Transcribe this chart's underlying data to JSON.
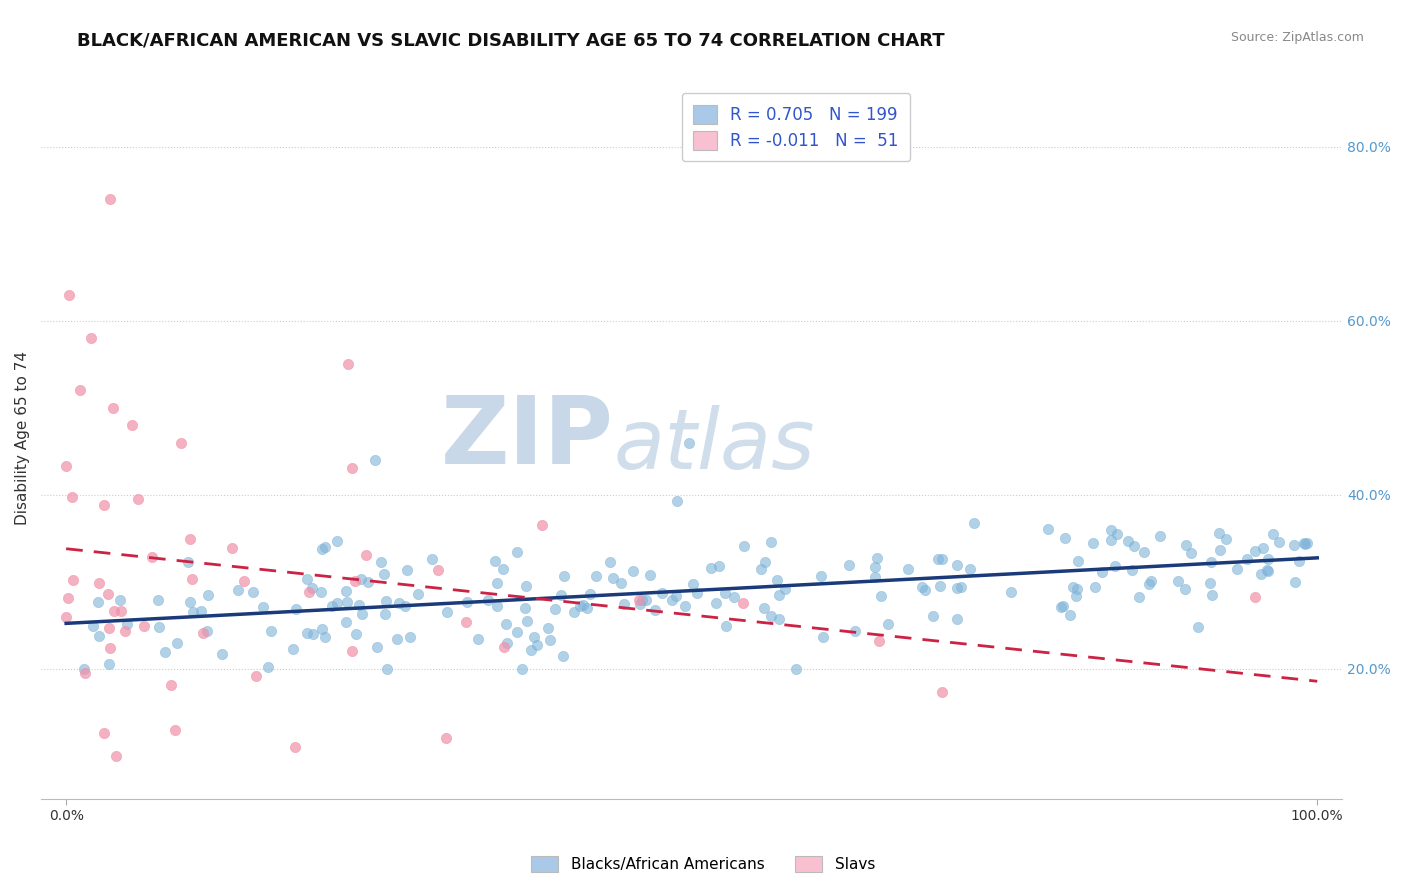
{
  "title": "BLACK/AFRICAN AMERICAN VS SLAVIC DISABILITY AGE 65 TO 74 CORRELATION CHART",
  "source_text": "Source: ZipAtlas.com",
  "ylabel": "Disability Age 65 to 74",
  "xlim": [
    -0.02,
    1.02
  ],
  "ylim": [
    0.05,
    0.88
  ],
  "ytick_vals": [
    0.2,
    0.4,
    0.6,
    0.8
  ],
  "ytick_labels": [
    "20.0%",
    "40.0%",
    "60.0%",
    "80.0%"
  ],
  "xtick_vals": [
    0.0,
    1.0
  ],
  "xtick_labels": [
    "0.0%",
    "100.0%"
  ],
  "watermark_zip": "ZIP",
  "watermark_atlas": "atlas",
  "watermark_color": "#c8d8e8",
  "blue_color": "#7eb3d8",
  "pink_color": "#f090a8",
  "trend_blue_color": "#1a3a7a",
  "trend_pink_color": "#cc2244",
  "R_blue": 0.705,
  "N_blue": 199,
  "R_pink": -0.011,
  "N_pink": 51,
  "blue_legend_fill": "#aac8e8",
  "pink_legend_fill": "#f8c0d0",
  "grid_color": "#cccccc",
  "background_color": "#ffffff",
  "title_fontsize": 13,
  "axis_label_fontsize": 11,
  "tick_fontsize": 10,
  "legend_fontsize": 12,
  "source_fontsize": 9
}
